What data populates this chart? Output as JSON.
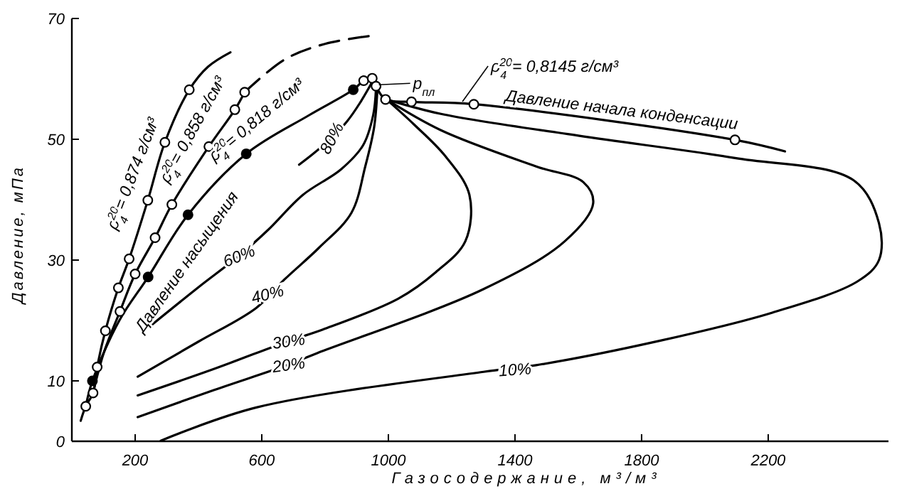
{
  "chart_data": {
    "type": "line",
    "xlabel": "Газосодержание, м³/м³",
    "ylabel": "Давление, мПа",
    "xlim": [
      0,
      2580
    ],
    "ylim": [
      0,
      70
    ],
    "xticks": [
      200,
      600,
      1000,
      1400,
      1800,
      2200
    ],
    "yticks": [
      0,
      10,
      30,
      50,
      70
    ],
    "grid": false,
    "marker": "none",
    "series": [
      {
        "color": "#000000",
        "x": [
          28,
          44,
          67,
          80,
          106,
          147,
          181,
          240,
          294,
          371,
          430,
          501
        ],
        "values": [
          3.4,
          5.8,
          8.0,
          12.3,
          18.3,
          25.4,
          30.2,
          39.9,
          49.5,
          58.2,
          62,
          64.4
        ]
      },
      {
        "color": "#000000",
        "x": [
          67,
          100,
          152,
          200,
          263,
          316,
          433,
          515,
          546
        ],
        "values": [
          8.0,
          14.5,
          21.5,
          27.7,
          33.7,
          39.2,
          48.8,
          54.9,
          57.8
        ]
      },
      {
        "color": "#000000",
        "line_style": "dashed",
        "x": [
          546,
          672,
          800,
          955
        ],
        "values": [
          57.8,
          63.2,
          65.8,
          67.2
        ]
      },
      {
        "color": "#000000",
        "x": [
          44,
          65,
          150,
          241,
          367,
          551,
          750,
          889,
          922,
          949,
          961
        ],
        "values": [
          5.8,
          10,
          20,
          27.2,
          37.5,
          47.6,
          54,
          58.2,
          59.7,
          60.1,
          58.8
        ]
      },
      {
        "color": "#000000",
        "x": [
          961,
          991,
          1073,
          1270,
          2095,
          2253
        ],
        "values": [
          58.8,
          56.6,
          56.2,
          55.8,
          49.9,
          48.0
        ]
      },
      {
        "color": "#000000",
        "x": [
          718,
          760,
          820,
          870,
          910,
          949
        ],
        "values": [
          45.8,
          47.5,
          50.2,
          53,
          56,
          59.5
        ]
      },
      {
        "color": "#000000",
        "x": [
          253,
          400,
          528,
          620,
          730,
          850,
          920,
          952,
          961
        ],
        "values": [
          19.3,
          25.5,
          30.7,
          35,
          40.8,
          45,
          49,
          54,
          58.5
        ]
      },
      {
        "color": "#000000",
        "x": [
          208,
          400,
          583,
          672,
          780,
          883,
          927,
          955,
          965
        ],
        "values": [
          10.7,
          16.5,
          22.1,
          26.8,
          32,
          37.8,
          45.5,
          52,
          58
        ]
      },
      {
        "color": "#000000",
        "x": [
          208,
          450,
          685,
          793,
          1031,
          1150,
          1243,
          1256,
          1180,
          1080,
          994
        ],
        "values": [
          7.6,
          12,
          16.6,
          18.5,
          23.6,
          28,
          33.1,
          40.8,
          47.2,
          52.5,
          56.6
        ]
      },
      {
        "color": "#000000",
        "x": [
          208,
          450,
          685,
          775,
          1301,
          1557,
          1647,
          1616,
          1467,
          1166,
          994
        ],
        "values": [
          4.0,
          8.5,
          12.7,
          14.6,
          25.2,
          33.1,
          39.4,
          42.9,
          45.5,
          51.5,
          56.6
        ]
      },
      {
        "color": "#000000",
        "x": [
          281,
          583,
          1301,
          1467,
          1854,
          2213,
          2483,
          2550,
          2550,
          2470,
          2095,
          1600,
          1166,
          994
        ],
        "values": [
          0.1,
          5.6,
          11.5,
          12.6,
          16.6,
          21.3,
          26.5,
          30,
          36.1,
          43.2,
          46.9,
          50.6,
          54.2,
          56.6
        ]
      },
      {
        "type": "scatter",
        "marker": "circle",
        "color": "#ffffff",
        "x": [
          44,
          67,
          80,
          106,
          147,
          181,
          240,
          294,
          371,
          152,
          200,
          263,
          316,
          433,
          515,
          546,
          922,
          949,
          961,
          991,
          1073,
          1270,
          2095
        ],
        "values": [
          5.8,
          8.0,
          12.3,
          18.3,
          25.4,
          30.2,
          39.9,
          49.5,
          58.2,
          21.5,
          27.7,
          33.7,
          39.2,
          48.8,
          54.9,
          57.8,
          59.7,
          60.1,
          58.8,
          56.6,
          56.2,
          55.8,
          49.9
        ]
      },
      {
        "type": "scatter",
        "marker": "circle",
        "color": "#000000",
        "x": [
          65,
          241,
          367,
          551,
          889
        ],
        "values": [
          10,
          27.2,
          37.5,
          47.6,
          58.2
        ]
      }
    ],
    "annotations": [
      "ρ$_{4}$$^{20}$= 0,874 г/см³",
      "ρ$_{4}$$^{20}$= 0,858 г/см³",
      "ρ$_{4}$$^{20}$= 0,818 г/см³",
      "Давление насыщения",
      {
        "text": "80%",
        "x": 820,
        "y": 50.2
      },
      {
        "text": "60%",
        "x": 528,
        "y": 30.7
      },
      {
        "text": "40%",
        "x": 618,
        "y": 24.4
      },
      {
        "text": "30%",
        "x": 685,
        "y": 16.6
      },
      {
        "text": "20%",
        "x": 685,
        "y": 12.7
      },
      {
        "text": "10%",
        "x": 1400,
        "y": 11.9
      },
      {
        "text": "p$_{пл}$",
        "x": 961,
        "y": 58.8
      },
      {
        "text": "ρ$_{4}$$^{20}$= 0,8145 г/см³",
        "x": 1225,
        "y": 56
      },
      "Давление начала конденсации"
    ]
  }
}
